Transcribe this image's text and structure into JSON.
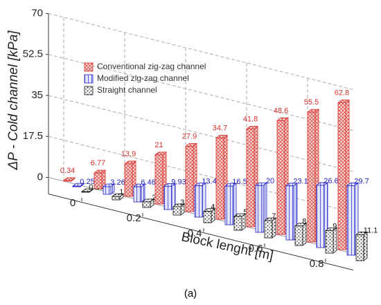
{
  "chart_data": {
    "type": "bar3d",
    "y_label": "ΔP - Cold channel [kPa]",
    "x_label": "Block lenght [m]",
    "caption": "(a)",
    "x": [
      0,
      0.1,
      0.2,
      0.3,
      0.4,
      0.5,
      0.6,
      0.7,
      0.8,
      0.9
    ],
    "xlim": [
      -0.05,
      0.95
    ],
    "xticks": [
      0,
      0.2,
      0.4,
      0.6,
      0.8
    ],
    "ylim": [
      0,
      70
    ],
    "yticks": [
      0,
      17.5,
      35,
      52.5,
      70
    ],
    "grid": true,
    "legend": "upper left",
    "series": [
      {
        "name": "Conventional zig-zag channel",
        "color": "#d7302c",
        "values": [
          0.34,
          6.77,
          13.9,
          21,
          27.9,
          34.7,
          41.8,
          48.6,
          55.5,
          62.8
        ]
      },
      {
        "name": "Modified zig-zag channel",
        "color": "#2020c8",
        "values": [
          0.25,
          3.26,
          6.46,
          9.93,
          13.4,
          16.5,
          20,
          23.1,
          26.6,
          29.7
        ]
      },
      {
        "name": "Straight channel",
        "color": "#111111",
        "values": [
          0.26,
          1.42,
          2.4,
          3.57,
          4.83,
          5.9,
          7.35,
          8.34,
          9.59,
          11.1
        ]
      }
    ]
  }
}
